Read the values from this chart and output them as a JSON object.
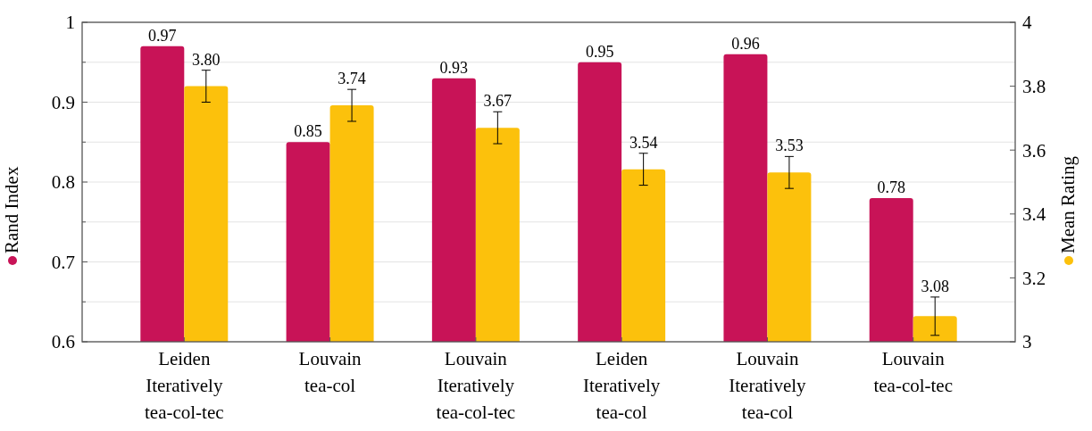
{
  "chart_data": {
    "type": "bar",
    "categories": [
      "Leiden\nIteratively\ntea-col-tec",
      "Louvain\ntea-col",
      "Louvain\nIteratively\ntea-col-tec",
      "Leiden\nIteratively\ntea-col",
      "Louvain\nIteratively\ntea-col",
      "Louvain\ntea-col-tec"
    ],
    "series": [
      {
        "color": "#c81357",
        "values": [
          0.97,
          0.85,
          0.93,
          0.95,
          0.96,
          0.78
        ]
      },
      {
        "color": "#fcc10c",
        "axis": "y2",
        "values": [
          3.8,
          3.74,
          3.67,
          3.54,
          3.53,
          3.08
        ],
        "value_labels": [
          "3.80",
          "3.74",
          "3.67",
          "3.54",
          "3.53",
          "3.08"
        ],
        "errors": [
          0.05,
          0.05,
          0.05,
          0.05,
          0.05,
          0.06
        ]
      }
    ],
    "data_labels": true,
    "ylim": [
      0.6,
      1
    ],
    "yticks": [
      0.6,
      {
        "value": 0.65,
        "label": null
      },
      0.7,
      {
        "value": 0.75,
        "label": null
      },
      0.8,
      {
        "value": 0.85,
        "label": null
      },
      0.9,
      {
        "value": 0.95,
        "label": null
      },
      1
    ],
    "y2lim": [
      3,
      4
    ],
    "y2ticks": [
      3,
      3.2,
      3.4,
      3.6,
      3.8,
      4
    ],
    "grid": "y",
    "ylabel": "Rand Index",
    "y2label": "Mean Rating"
  }
}
